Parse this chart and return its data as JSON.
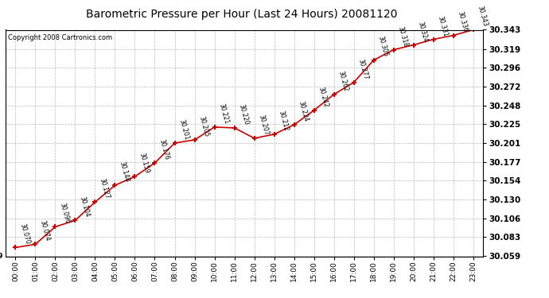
{
  "title": "Barometric Pressure per Hour (Last 24 Hours) 20081120",
  "copyright": "Copyright 2008 Cartronics.com",
  "hours": [
    "00:00",
    "01:00",
    "02:00",
    "03:00",
    "04:00",
    "05:00",
    "06:00",
    "07:00",
    "08:00",
    "09:00",
    "10:00",
    "11:00",
    "12:00",
    "13:00",
    "14:00",
    "15:00",
    "16:00",
    "17:00",
    "18:00",
    "19:00",
    "20:00",
    "21:00",
    "22:00",
    "23:00"
  ],
  "pressures": [
    30.07,
    30.074,
    30.096,
    30.104,
    30.127,
    30.148,
    30.159,
    30.176,
    30.201,
    30.205,
    30.221,
    30.22,
    30.207,
    30.212,
    30.224,
    30.242,
    30.262,
    30.277,
    30.305,
    30.318,
    30.324,
    30.331,
    30.336,
    30.343
  ],
  "line_color": "#cc0000",
  "marker_color": "#cc0000",
  "bg_color": "#ffffff",
  "grid_color": "#bbbbbb",
  "ylim_min": 30.059,
  "ylim_max": 30.343,
  "yticks": [
    30.059,
    30.083,
    30.106,
    30.13,
    30.154,
    30.177,
    30.201,
    30.225,
    30.248,
    30.272,
    30.296,
    30.319,
    30.343
  ]
}
